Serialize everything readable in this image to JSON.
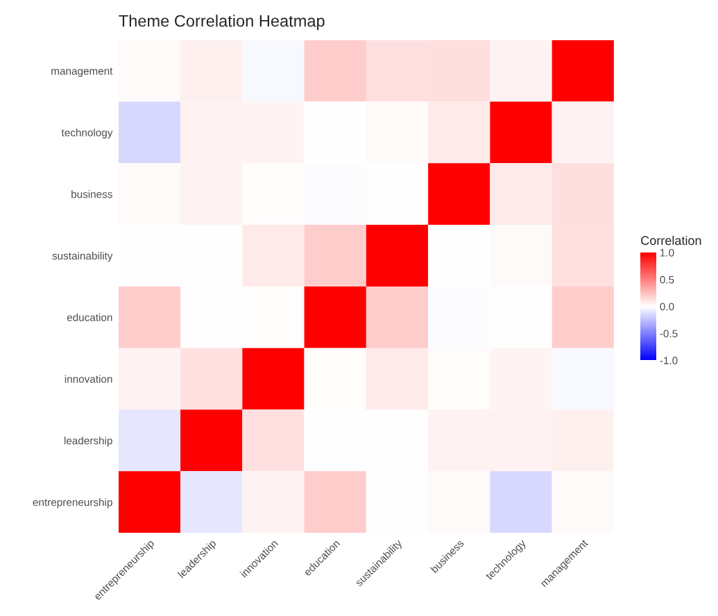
{
  "chart_data": {
    "type": "heatmap",
    "title": "Theme Correlation Heatmap",
    "clabel": "Correlation",
    "categories": [
      "entrepreneurship",
      "leadership",
      "innovation",
      "education",
      "sustainability",
      "business",
      "technology",
      "management"
    ],
    "y_categories": [
      "management",
      "technology",
      "business",
      "sustainability",
      "education",
      "innovation",
      "leadership",
      "entrepreneurship"
    ],
    "cells": [
      [
        0.02,
        0.06,
        -0.03,
        0.2,
        0.12,
        0.13,
        0.05,
        1.0
      ],
      [
        -0.15,
        0.05,
        0.04,
        0.0,
        0.02,
        0.08,
        1.0,
        0.05
      ],
      [
        0.02,
        0.05,
        0.01,
        -0.01,
        0.0,
        1.0,
        0.08,
        0.13
      ],
      [
        0.0,
        0.0,
        0.08,
        0.2,
        1.0,
        0.0,
        0.02,
        0.12
      ],
      [
        0.2,
        0.0,
        0.01,
        1.0,
        0.2,
        -0.01,
        0.0,
        0.2
      ],
      [
        0.05,
        0.12,
        1.0,
        0.01,
        0.08,
        0.01,
        0.04,
        -0.03
      ],
      [
        -0.1,
        1.0,
        0.12,
        0.0,
        0.0,
        0.05,
        0.05,
        0.06
      ],
      [
        1.0,
        -0.1,
        0.05,
        0.2,
        0.0,
        0.02,
        -0.15,
        0.02
      ]
    ],
    "clim": [
      -1,
      1
    ],
    "cticks": [
      {
        "value": -1,
        "label": "-1.0"
      },
      {
        "value": -0.5,
        "label": "-0.5"
      },
      {
        "value": 0,
        "label": "0.0"
      },
      {
        "value": 0.5,
        "label": "0.5"
      },
      {
        "value": 1,
        "label": "1.0"
      }
    ]
  }
}
